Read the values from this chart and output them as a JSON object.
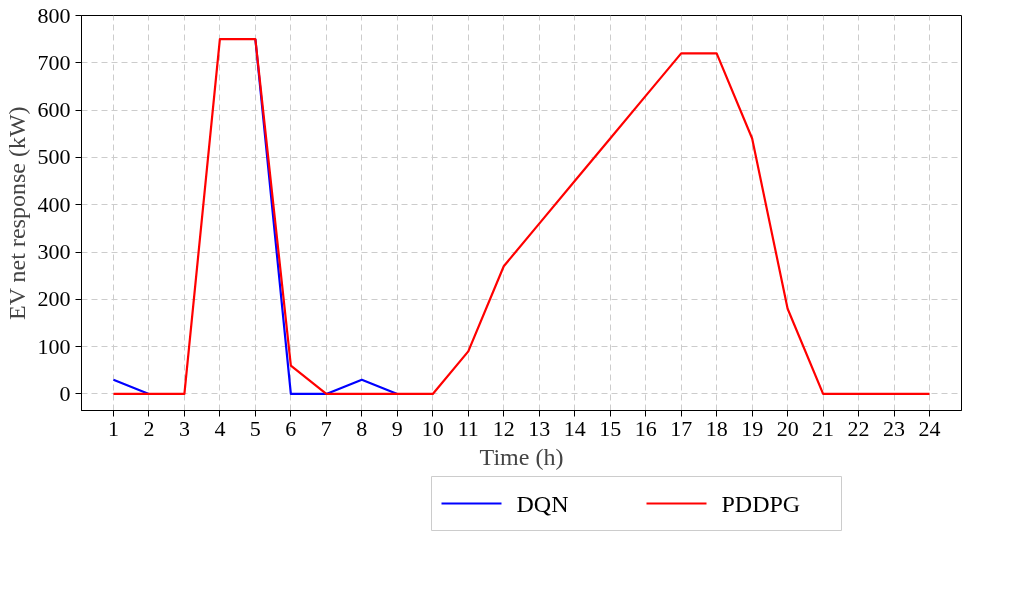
{
  "chart_data": {
    "type": "line",
    "xlabel": "Time (h)",
    "ylabel": "EV net response (kW)",
    "x": [
      1,
      2,
      3,
      4,
      5,
      6,
      7,
      8,
      9,
      10,
      11,
      12,
      13,
      14,
      15,
      16,
      17,
      18,
      19,
      20,
      21,
      22,
      23,
      24
    ],
    "xlim": [
      0.1,
      24.9
    ],
    "xticks": [
      1,
      2,
      3,
      4,
      5,
      6,
      7,
      8,
      9,
      10,
      11,
      12,
      13,
      14,
      15,
      16,
      17,
      18,
      19,
      20,
      21,
      22,
      23,
      24
    ],
    "ylim": [
      -35,
      800
    ],
    "yticks": [
      0,
      100,
      200,
      300,
      400,
      500,
      600,
      700,
      800
    ],
    "series": [
      {
        "name": "DQN",
        "color": "#0000ff",
        "values": [
          30,
          0,
          null,
          null,
          750,
          0,
          0,
          30,
          0,
          null,
          null,
          null,
          null,
          null,
          null,
          null,
          null,
          null,
          null,
          null,
          null,
          null,
          null,
          null
        ]
      },
      {
        "name": "PDDPG",
        "color": "#ff0000",
        "values": [
          0,
          0,
          0,
          750,
          750,
          60,
          0,
          0,
          0,
          0,
          90,
          270,
          360,
          450,
          540,
          630,
          720,
          720,
          540,
          180,
          0,
          0,
          0,
          0
        ]
      }
    ],
    "grid": true,
    "legend": "bottom",
    "line_style": "solid",
    "marker": "none"
  }
}
